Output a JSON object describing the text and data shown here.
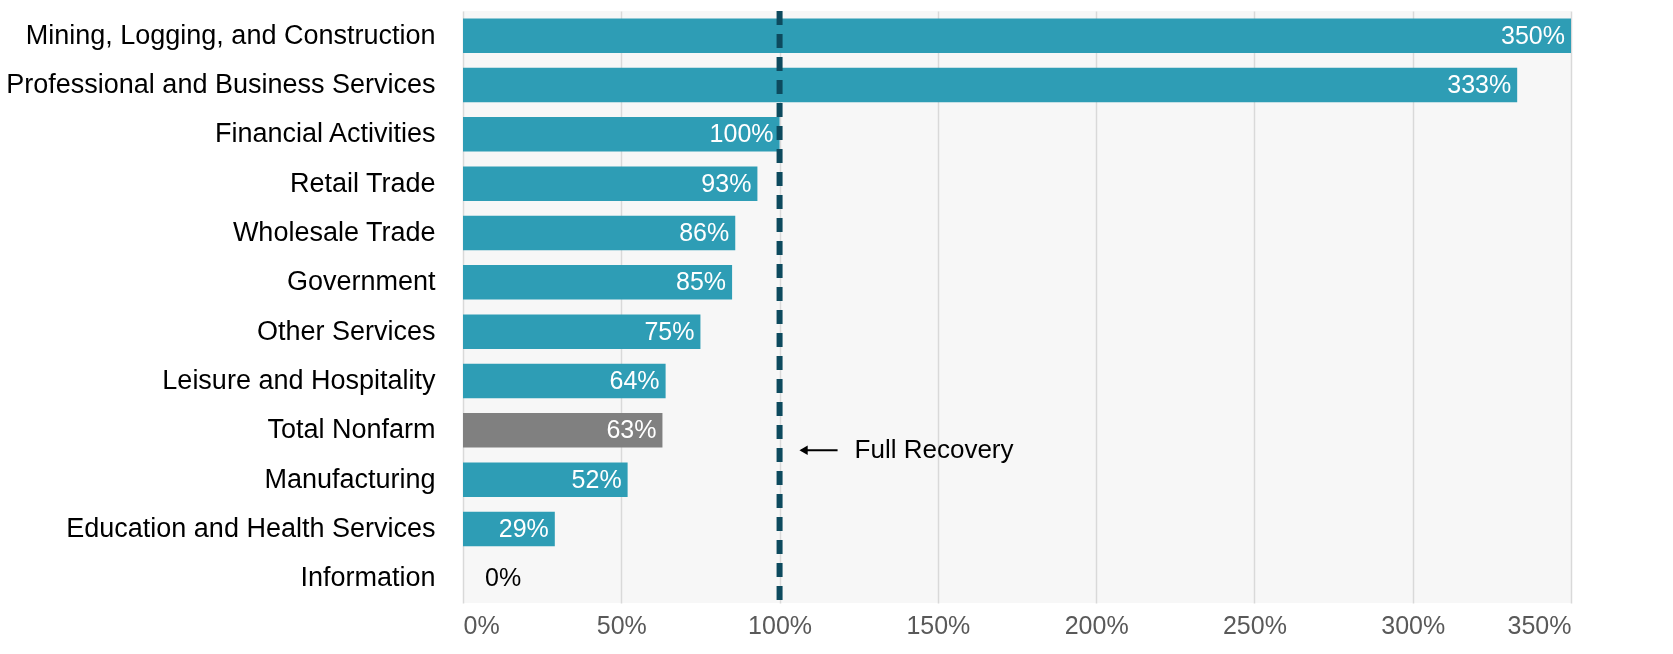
{
  "chart_data": {
    "type": "bar",
    "orientation": "horizontal",
    "categories": [
      "Mining, Logging, and Construction",
      "Professional and Business Services",
      "Financial Activities",
      "Retail Trade",
      "Wholesale Trade",
      "Government",
      "Other Services",
      "Leisure and Hospitality",
      "Total Nonfarm",
      "Manufacturing",
      "Education and Health Services",
      "Information"
    ],
    "values": [
      350,
      333,
      100,
      93,
      86,
      85,
      75,
      64,
      63,
      52,
      29,
      0
    ],
    "colors": [
      "#2e9db5",
      "#2e9db5",
      "#2e9db5",
      "#2e9db5",
      "#2e9db5",
      "#2e9db5",
      "#2e9db5",
      "#2e9db5",
      "#808080",
      "#2e9db5",
      "#2e9db5",
      "#2e9db5"
    ],
    "value_labels": [
      "350%",
      "333%",
      "100%",
      "93%",
      "86%",
      "85%",
      "75%",
      "64%",
      "63%",
      "52%",
      "29%",
      "0%"
    ],
    "xlim": [
      0,
      350
    ],
    "xticks": [
      {
        "value": 0,
        "label": "0%"
      },
      {
        "value": 50,
        "label": "50%"
      },
      {
        "value": 100,
        "label": "100%"
      },
      {
        "value": 150,
        "label": "150%"
      },
      {
        "value": 200,
        "label": "200%"
      },
      {
        "value": 250,
        "label": "250%"
      },
      {
        "value": 300,
        "label": "300%"
      },
      {
        "value": 350,
        "label": "350%"
      }
    ],
    "grid": "x",
    "ref_lines": [
      {
        "axis": "x",
        "value": 100,
        "label": "Full Recovery",
        "color": "#0d4a5e",
        "line_style": "dashed"
      }
    ]
  }
}
